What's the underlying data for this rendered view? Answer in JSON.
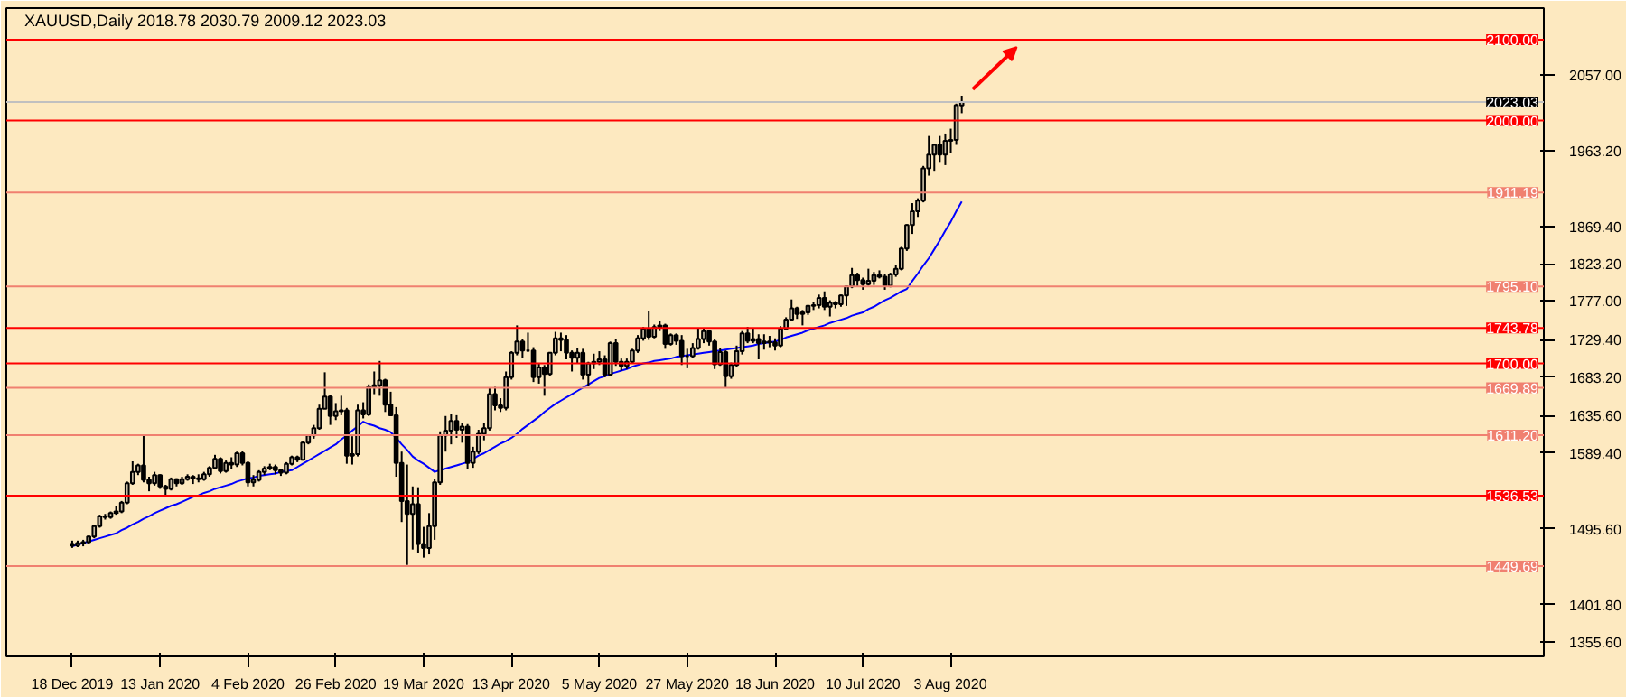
{
  "chart_data": {
    "type": "candlestick",
    "title": "XAUUSD,Daily  2018.78 2030.79 2009.12 2023.03",
    "color": "#000000",
    "grid": false,
    "categories": [
      "18 Dec 2019",
      null,
      null,
      null,
      null,
      null,
      null,
      null,
      null,
      null,
      null,
      null,
      null,
      null,
      null,
      null,
      "13 Jan 2020",
      null,
      null,
      null,
      null,
      null,
      null,
      null,
      null,
      null,
      null,
      null,
      null,
      null,
      null,
      null,
      "4 Feb 2020",
      null,
      null,
      null,
      null,
      null,
      null,
      null,
      null,
      null,
      null,
      null,
      null,
      null,
      null,
      null,
      "26 Feb 2020",
      null,
      null,
      null,
      null,
      null,
      null,
      null,
      null,
      null,
      null,
      null,
      null,
      null,
      null,
      null,
      "19 Mar 2020",
      null,
      null,
      null,
      null,
      null,
      null,
      null,
      null,
      null,
      null,
      null,
      null,
      null,
      null,
      null,
      "13 Apr 2020",
      null,
      null,
      null,
      null,
      null,
      null,
      null,
      null,
      null,
      null,
      null,
      null,
      null,
      null,
      null,
      "5 May 2020",
      null,
      null,
      null,
      null,
      null,
      null,
      null,
      null,
      null,
      null,
      null,
      null,
      null,
      null,
      null,
      "27 May 2020",
      null,
      null,
      null,
      null,
      null,
      null,
      null,
      null,
      null,
      null,
      null,
      null,
      null,
      null,
      null,
      "18 Jun 2020",
      null,
      null,
      null,
      null,
      null,
      null,
      null,
      null,
      null,
      null,
      null,
      null,
      null,
      null,
      null,
      "10 Jul 2020",
      null,
      null,
      null,
      null,
      null,
      null,
      null,
      null,
      null,
      null,
      null,
      null,
      null,
      null,
      null,
      "3 Aug 2020",
      null,
      null
    ],
    "ohlc": [
      [
        1477,
        1481,
        1472,
        1475
      ],
      [
        1475,
        1481,
        1473,
        1478
      ],
      [
        1478,
        1482,
        1474,
        1479
      ],
      [
        1479,
        1487,
        1477,
        1486
      ],
      [
        1486,
        1500,
        1484,
        1499
      ],
      [
        1499,
        1513,
        1497,
        1511
      ],
      [
        1511,
        1514,
        1507,
        1510
      ],
      [
        1510,
        1517,
        1508,
        1515
      ],
      [
        1515,
        1524,
        1513,
        1517
      ],
      [
        1517,
        1530,
        1515,
        1528
      ],
      [
        1528,
        1554,
        1526,
        1552
      ],
      [
        1552,
        1579,
        1550,
        1566
      ],
      [
        1566,
        1576,
        1562,
        1574
      ],
      [
        1574,
        1611,
        1553,
        1556
      ],
      [
        1556,
        1560,
        1542,
        1552
      ],
      [
        1552,
        1566,
        1549,
        1562
      ],
      [
        1562,
        1563,
        1545,
        1548
      ],
      [
        1548,
        1550,
        1536,
        1545
      ],
      [
        1545,
        1559,
        1543,
        1557
      ],
      [
        1557,
        1558,
        1548,
        1552
      ],
      [
        1552,
        1560,
        1550,
        1557
      ],
      [
        1557,
        1563,
        1555,
        1560
      ],
      [
        1560,
        1562,
        1551,
        1558
      ],
      [
        1558,
        1563,
        1553,
        1557
      ],
      [
        1557,
        1566,
        1555,
        1563
      ],
      [
        1563,
        1573,
        1560,
        1571
      ],
      [
        1571,
        1587,
        1569,
        1582
      ],
      [
        1582,
        1584,
        1564,
        1567
      ],
      [
        1567,
        1580,
        1565,
        1577
      ],
      [
        1577,
        1584,
        1569,
        1575
      ],
      [
        1575,
        1591,
        1572,
        1589
      ],
      [
        1589,
        1592,
        1574,
        1577
      ],
      [
        1577,
        1579,
        1548,
        1553
      ],
      [
        1553,
        1562,
        1548,
        1556
      ],
      [
        1556,
        1568,
        1554,
        1566
      ],
      [
        1566,
        1573,
        1562,
        1570
      ],
      [
        1570,
        1576,
        1568,
        1572
      ],
      [
        1572,
        1575,
        1563,
        1568
      ],
      [
        1568,
        1570,
        1561,
        1565
      ],
      [
        1565,
        1578,
        1563,
        1576
      ],
      [
        1576,
        1586,
        1574,
        1584
      ],
      [
        1584,
        1586,
        1578,
        1581
      ],
      [
        1581,
        1604,
        1580,
        1602
      ],
      [
        1602,
        1612,
        1600,
        1611
      ],
      [
        1611,
        1624,
        1607,
        1620
      ],
      [
        1620,
        1649,
        1618,
        1644
      ],
      [
        1644,
        1689,
        1644,
        1659
      ],
      [
        1659,
        1661,
        1624,
        1635
      ],
      [
        1635,
        1651,
        1630,
        1641
      ],
      [
        1641,
        1660,
        1636,
        1642
      ],
      [
        1642,
        1645,
        1576,
        1586
      ],
      [
        1586,
        1610,
        1575,
        1588
      ],
      [
        1588,
        1649,
        1585,
        1642
      ],
      [
        1642,
        1652,
        1632,
        1637
      ],
      [
        1637,
        1674,
        1635,
        1671
      ],
      [
        1671,
        1690,
        1662,
        1673
      ],
      [
        1673,
        1703,
        1660,
        1679
      ],
      [
        1679,
        1681,
        1640,
        1649
      ],
      [
        1649,
        1665,
        1635,
        1636
      ],
      [
        1636,
        1646,
        1560,
        1577
      ],
      [
        1577,
        1591,
        1504,
        1530
      ],
      [
        1530,
        1575,
        1451,
        1514
      ],
      [
        1514,
        1548,
        1470,
        1526
      ],
      [
        1526,
        1547,
        1466,
        1477
      ],
      [
        1477,
        1498,
        1460,
        1472
      ],
      [
        1472,
        1515,
        1464,
        1499
      ],
      [
        1499,
        1557,
        1482,
        1553
      ],
      [
        1553,
        1616,
        1550,
        1611
      ],
      [
        1611,
        1635,
        1591,
        1617
      ],
      [
        1617,
        1637,
        1600,
        1629
      ],
      [
        1629,
        1636,
        1608,
        1618
      ],
      [
        1618,
        1626,
        1602,
        1622
      ],
      [
        1622,
        1625,
        1570,
        1577
      ],
      [
        1577,
        1597,
        1571,
        1591
      ],
      [
        1591,
        1618,
        1588,
        1613
      ],
      [
        1613,
        1626,
        1605,
        1620
      ],
      [
        1620,
        1670,
        1617,
        1662
      ],
      [
        1662,
        1671,
        1642,
        1648
      ],
      [
        1648,
        1657,
        1640,
        1645
      ],
      [
        1645,
        1690,
        1642,
        1683
      ],
      [
        1683,
        1715,
        1680,
        1713
      ],
      [
        1713,
        1747,
        1710,
        1727
      ],
      [
        1727,
        1730,
        1707,
        1716
      ],
      [
        1716,
        1738,
        1714,
        1716
      ],
      [
        1716,
        1720,
        1677,
        1683
      ],
      [
        1683,
        1700,
        1675,
        1695
      ],
      [
        1695,
        1698,
        1660,
        1687
      ],
      [
        1687,
        1714,
        1685,
        1713
      ],
      [
        1713,
        1739,
        1710,
        1731
      ],
      [
        1731,
        1738,
        1715,
        1729
      ],
      [
        1729,
        1735,
        1705,
        1713
      ],
      [
        1713,
        1716,
        1690,
        1707
      ],
      [
        1707,
        1719,
        1700,
        1713
      ],
      [
        1713,
        1718,
        1680,
        1686
      ],
      [
        1686,
        1702,
        1672,
        1700
      ],
      [
        1700,
        1712,
        1693,
        1702
      ],
      [
        1702,
        1715,
        1698,
        1705
      ],
      [
        1705,
        1710,
        1683,
        1686
      ],
      [
        1686,
        1727,
        1685,
        1725
      ],
      [
        1725,
        1730,
        1697,
        1702
      ],
      [
        1702,
        1706,
        1691,
        1697
      ],
      [
        1697,
        1706,
        1693,
        1702
      ],
      [
        1702,
        1718,
        1700,
        1716
      ],
      [
        1716,
        1735,
        1713,
        1731
      ],
      [
        1731,
        1745,
        1728,
        1743
      ],
      [
        1743,
        1765,
        1729,
        1733
      ],
      [
        1733,
        1748,
        1731,
        1745
      ],
      [
        1745,
        1753,
        1740,
        1747
      ],
      [
        1747,
        1749,
        1718,
        1724
      ],
      [
        1724,
        1737,
        1722,
        1735
      ],
      [
        1735,
        1737,
        1723,
        1728
      ],
      [
        1728,
        1735,
        1698,
        1709
      ],
      [
        1709,
        1718,
        1694,
        1709
      ],
      [
        1709,
        1725,
        1707,
        1719
      ],
      [
        1719,
        1744,
        1717,
        1730
      ],
      [
        1730,
        1744,
        1725,
        1740
      ],
      [
        1740,
        1741,
        1722,
        1727
      ],
      [
        1727,
        1730,
        1693,
        1699
      ],
      [
        1699,
        1719,
        1697,
        1714
      ],
      [
        1714,
        1716,
        1670,
        1684
      ],
      [
        1684,
        1701,
        1681,
        1698
      ],
      [
        1698,
        1722,
        1696,
        1715
      ],
      [
        1715,
        1740,
        1711,
        1737
      ],
      [
        1737,
        1745,
        1725,
        1728
      ],
      [
        1728,
        1744,
        1725,
        1730
      ],
      [
        1730,
        1736,
        1705,
        1725
      ],
      [
        1725,
        1736,
        1717,
        1727
      ],
      [
        1727,
        1734,
        1720,
        1726
      ],
      [
        1726,
        1731,
        1716,
        1722
      ],
      [
        1722,
        1746,
        1720,
        1743
      ],
      [
        1743,
        1757,
        1741,
        1754
      ],
      [
        1754,
        1779,
        1752,
        1768
      ],
      [
        1768,
        1770,
        1755,
        1761
      ],
      [
        1761,
        1766,
        1747,
        1763
      ],
      [
        1763,
        1772,
        1760,
        1771
      ],
      [
        1771,
        1776,
        1766,
        1772
      ],
      [
        1772,
        1785,
        1768,
        1781
      ],
      [
        1781,
        1789,
        1766,
        1770
      ],
      [
        1770,
        1778,
        1758,
        1775
      ],
      [
        1775,
        1777,
        1768,
        1773
      ],
      [
        1773,
        1785,
        1770,
        1784
      ],
      [
        1784,
        1796,
        1771,
        1795
      ],
      [
        1795,
        1818,
        1793,
        1809
      ],
      [
        1809,
        1812,
        1795,
        1803
      ],
      [
        1803,
        1806,
        1791,
        1798
      ],
      [
        1798,
        1817,
        1796,
        1802
      ],
      [
        1802,
        1813,
        1797,
        1809
      ],
      [
        1809,
        1815,
        1805,
        1807
      ],
      [
        1807,
        1810,
        1791,
        1796
      ],
      [
        1796,
        1812,
        1794,
        1810
      ],
      [
        1810,
        1822,
        1807,
        1817
      ],
      [
        1817,
        1844,
        1815,
        1842
      ],
      [
        1842,
        1872,
        1839,
        1871
      ],
      [
        1871,
        1898,
        1860,
        1888
      ],
      [
        1888,
        1904,
        1881,
        1901
      ],
      [
        1901,
        1944,
        1899,
        1941
      ],
      [
        1941,
        1981,
        1932,
        1958
      ],
      [
        1958,
        1970,
        1938,
        1970
      ],
      [
        1970,
        1981,
        1949,
        1958
      ],
      [
        1958,
        1984,
        1945,
        1975
      ],
      [
        1975,
        1990,
        1960,
        1976
      ],
      [
        1976,
        2021,
        1970,
        2019
      ],
      [
        2018.78,
        2030.79,
        2009.12,
        2023.03
      ]
    ],
    "series": [
      {
        "type": "line",
        "color": "#0000ff",
        "values": [
          1474,
          1476,
          1478,
          1480,
          1482,
          1484,
          1486,
          1488,
          1490,
          1494,
          1497,
          1501,
          1504,
          1508,
          1511,
          1515,
          1518,
          1521,
          1524,
          1526,
          1529,
          1532,
          1535,
          1537,
          1540,
          1542,
          1545,
          1547,
          1549,
          1551,
          1554,
          1556,
          1558,
          1559,
          1561,
          1562,
          1563,
          1564,
          1566,
          1567,
          1568,
          1572,
          1576,
          1580,
          1584,
          1588,
          1592,
          1596,
          1600,
          1606,
          1611,
          1617,
          1622,
          1628,
          1625,
          1623,
          1620,
          1618,
          1615,
          1608,
          1600,
          1593,
          1585,
          1580,
          1576,
          1571,
          1566,
          1568,
          1570,
          1572,
          1574,
          1576,
          1578,
          1582,
          1586,
          1589,
          1593,
          1597,
          1601,
          1604,
          1608,
          1613,
          1619,
          1624,
          1629,
          1634,
          1640,
          1645,
          1650,
          1654,
          1658,
          1662,
          1666,
          1670,
          1674,
          1678,
          1682,
          1684,
          1687,
          1689,
          1691,
          1693,
          1696,
          1698,
          1700,
          1701,
          1703,
          1704,
          1705,
          1706,
          1708,
          1709,
          1710,
          1711,
          1712,
          1713,
          1714,
          1715,
          1716,
          1717,
          1718,
          1719,
          1720,
          1721,
          1722,
          1724,
          1725,
          1726,
          1727,
          1729,
          1732,
          1734,
          1736,
          1738,
          1741,
          1743,
          1745,
          1747,
          1750,
          1752,
          1754,
          1756,
          1759,
          1761,
          1763,
          1767,
          1770,
          1774,
          1778,
          1781,
          1785,
          1789,
          1792,
          1802,
          1811,
          1821,
          1830,
          1841,
          1852,
          1864,
          1875,
          1888,
          1900
        ]
      }
    ],
    "ylim": [
      1338,
      2139
    ],
    "yticks": [
      {
        "value": 2057,
        "label": "2057.00"
      },
      {
        "value": 1963.2,
        "label": "1963.20"
      },
      {
        "value": 1869.4,
        "label": "1869.40"
      },
      {
        "value": 1823.2,
        "label": "1823.20"
      },
      {
        "value": 1777,
        "label": "1777.00"
      },
      {
        "value": 1729.4,
        "label": "1729.40"
      },
      {
        "value": 1683.2,
        "label": "1683.20"
      },
      {
        "value": 1635.6,
        "label": "1635.60"
      },
      {
        "value": 1589.4,
        "label": "1589.40"
      },
      {
        "value": 1495.6,
        "label": "1495.60"
      },
      {
        "value": 1401.8,
        "label": "1401.80"
      },
      {
        "value": 1355.6,
        "label": "1355.60"
      }
    ],
    "ref_lines": [
      {
        "axis": "y",
        "value": 2100,
        "label": "2100.00",
        "color": "#ff0000"
      },
      {
        "axis": "y",
        "value": 2023.03,
        "label": "2023.03",
        "color": "#c0c0c0"
      },
      {
        "axis": "y",
        "value": 2000,
        "label": "2000.00",
        "color": "#ff0000"
      },
      {
        "axis": "y",
        "value": 1911.19,
        "label": "1911.19",
        "color": "#f08070"
      },
      {
        "axis": "y",
        "value": 1795.1,
        "label": "1795.10",
        "color": "#f08070"
      },
      {
        "axis": "y",
        "value": 1743.78,
        "label": "1743.78",
        "color": "#ff0000"
      },
      {
        "axis": "y",
        "value": 1700,
        "label": "1700.00",
        "color": "#ff0000"
      },
      {
        "axis": "y",
        "value": 1669.89,
        "label": "1669.89",
        "color": "#f08070"
      },
      {
        "axis": "y",
        "value": 1611.2,
        "label": "1611.20",
        "color": "#f08070"
      },
      {
        "axis": "y",
        "value": 1536.53,
        "label": "1536.53",
        "color": "#ff0000"
      },
      {
        "axis": "y",
        "value": 1449.69,
        "label": "1449.69",
        "color": "#f08070"
      }
    ]
  }
}
